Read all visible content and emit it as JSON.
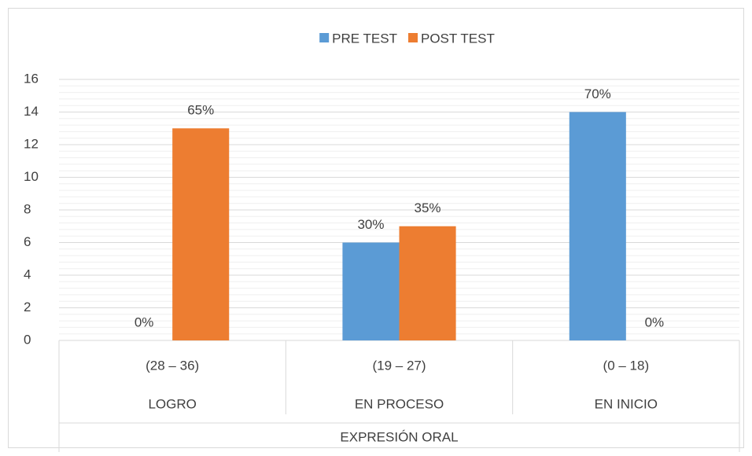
{
  "chart_data": {
    "type": "bar",
    "categories": [
      "(28 – 36)",
      "(19 – 27)",
      "(0 – 18)"
    ],
    "category_groups": [
      "LOGRO",
      "EN PROCESO",
      "EN INICIO"
    ],
    "group_label": "EXPRESIÓN ORAL",
    "series": [
      {
        "name": "PRE TEST",
        "color": "#5b9bd5",
        "values": [
          0,
          6,
          14
        ],
        "value_labels": [
          "0%",
          "30%",
          "70%"
        ]
      },
      {
        "name": "POST TEST",
        "color": "#ed7d31",
        "values": [
          13,
          7,
          0
        ],
        "value_labels": [
          "65%",
          "35%",
          "0%"
        ]
      }
    ],
    "ylim": [
      0,
      16
    ],
    "yticks": [
      0,
      2,
      4,
      6,
      8,
      10,
      12,
      14,
      16
    ],
    "grid": true,
    "minor_grid_divisions": 5,
    "legend": "top"
  }
}
